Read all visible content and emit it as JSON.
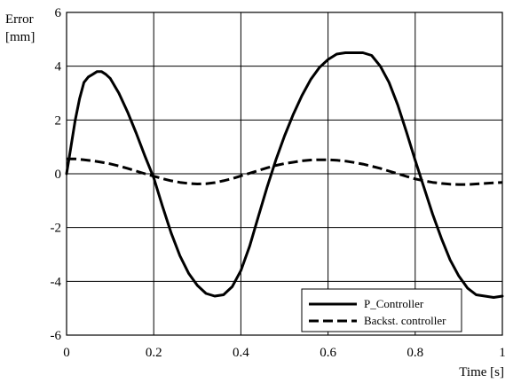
{
  "chart_data": {
    "type": "line",
    "ylabel_line1": "Error",
    "ylabel_line2": "[mm]",
    "xlabel": "Time [s]",
    "xlim": [
      0,
      1
    ],
    "ylim": [
      -6,
      6
    ],
    "x_ticks": [
      "0",
      "0.2",
      "0.4",
      "0.6",
      "0.8",
      "1"
    ],
    "y_ticks": [
      "6",
      "4",
      "2",
      "0",
      "-2",
      "-4",
      "-6"
    ],
    "grid": true,
    "legend_position": "bottom-right",
    "series": [
      {
        "name": "P_Controller",
        "style": "solid",
        "color": "#000000",
        "x": [
          0,
          0.01,
          0.02,
          0.03,
          0.04,
          0.05,
          0.06,
          0.07,
          0.08,
          0.09,
          0.1,
          0.12,
          0.14,
          0.16,
          0.18,
          0.2,
          0.22,
          0.24,
          0.26,
          0.28,
          0.3,
          0.32,
          0.34,
          0.36,
          0.38,
          0.4,
          0.42,
          0.44,
          0.46,
          0.48,
          0.5,
          0.52,
          0.54,
          0.56,
          0.58,
          0.6,
          0.62,
          0.64,
          0.66,
          0.68,
          0.7,
          0.72,
          0.74,
          0.76,
          0.78,
          0.8,
          0.82,
          0.84,
          0.86,
          0.88,
          0.9,
          0.92,
          0.94,
          0.96,
          0.98,
          1.0
        ],
        "y": [
          0,
          1.0,
          2.0,
          2.8,
          3.4,
          3.6,
          3.7,
          3.8,
          3.8,
          3.7,
          3.55,
          3.0,
          2.3,
          1.5,
          0.65,
          -0.15,
          -1.2,
          -2.2,
          -3.05,
          -3.7,
          -4.15,
          -4.45,
          -4.55,
          -4.5,
          -4.2,
          -3.6,
          -2.7,
          -1.6,
          -0.5,
          0.5,
          1.4,
          2.2,
          2.9,
          3.5,
          3.95,
          4.25,
          4.45,
          4.5,
          4.5,
          4.5,
          4.4,
          4.0,
          3.4,
          2.55,
          1.55,
          0.5,
          -0.5,
          -1.5,
          -2.4,
          -3.2,
          -3.8,
          -4.25,
          -4.5,
          -4.55,
          -4.6,
          -4.55
        ]
      },
      {
        "name": "Backst. controller",
        "style": "dashed",
        "color": "#000000",
        "x": [
          0,
          0.02,
          0.04,
          0.06,
          0.08,
          0.1,
          0.12,
          0.14,
          0.16,
          0.18,
          0.2,
          0.22,
          0.24,
          0.26,
          0.28,
          0.3,
          0.32,
          0.34,
          0.36,
          0.38,
          0.4,
          0.42,
          0.44,
          0.46,
          0.48,
          0.5,
          0.52,
          0.54,
          0.56,
          0.58,
          0.6,
          0.62,
          0.64,
          0.66,
          0.68,
          0.7,
          0.72,
          0.74,
          0.76,
          0.78,
          0.8,
          0.82,
          0.84,
          0.86,
          0.88,
          0.9,
          0.92,
          0.94,
          0.96,
          0.98,
          1.0
        ],
        "y": [
          0.55,
          0.55,
          0.52,
          0.48,
          0.43,
          0.37,
          0.29,
          0.2,
          0.1,
          0.0,
          -0.09,
          -0.18,
          -0.26,
          -0.32,
          -0.36,
          -0.38,
          -0.37,
          -0.33,
          -0.26,
          -0.18,
          -0.08,
          0.02,
          0.12,
          0.22,
          0.31,
          0.38,
          0.43,
          0.48,
          0.51,
          0.52,
          0.52,
          0.5,
          0.47,
          0.42,
          0.36,
          0.28,
          0.2,
          0.1,
          0.0,
          -0.1,
          -0.19,
          -0.26,
          -0.32,
          -0.36,
          -0.39,
          -0.4,
          -0.4,
          -0.38,
          -0.36,
          -0.34,
          -0.32
        ]
      }
    ]
  }
}
